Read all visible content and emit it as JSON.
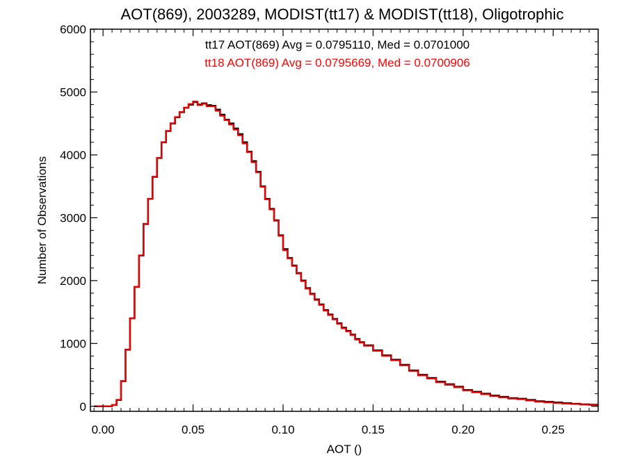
{
  "chart_data": {
    "type": "line",
    "step": true,
    "title": "AOT(869), 2003289, MODIST(tt17) & MODIST(tt18), Oligotrophic",
    "xlabel": "AOT ()",
    "ylabel": "Number of Observations",
    "xlim": [
      -0.007,
      0.275
    ],
    "ylim": [
      -80,
      6000
    ],
    "xticks": [
      0.0,
      0.05,
      0.1,
      0.15,
      0.2,
      0.25
    ],
    "xtick_labels": [
      "0.00",
      "0.05",
      "0.10",
      "0.15",
      "0.20",
      "0.25"
    ],
    "yticks": [
      0,
      1000,
      2000,
      3000,
      4000,
      5000,
      6000
    ],
    "ytick_labels": [
      "0",
      "1000",
      "2000",
      "3000",
      "4000",
      "5000",
      "6000"
    ],
    "grid": false,
    "legend_position": "top-center",
    "x": [
      -0.005,
      0.0,
      0.005,
      0.0075,
      0.01,
      0.0125,
      0.015,
      0.0175,
      0.02,
      0.0225,
      0.025,
      0.0275,
      0.03,
      0.0325,
      0.035,
      0.0375,
      0.04,
      0.0425,
      0.045,
      0.0475,
      0.05,
      0.0525,
      0.055,
      0.0575,
      0.06,
      0.0625,
      0.065,
      0.0675,
      0.07,
      0.0725,
      0.075,
      0.0775,
      0.08,
      0.0825,
      0.085,
      0.0875,
      0.09,
      0.0925,
      0.095,
      0.0975,
      0.1,
      0.1025,
      0.105,
      0.1075,
      0.11,
      0.1125,
      0.115,
      0.1175,
      0.12,
      0.1225,
      0.125,
      0.1275,
      0.13,
      0.1325,
      0.135,
      0.1375,
      0.14,
      0.1425,
      0.145,
      0.15,
      0.155,
      0.16,
      0.165,
      0.17,
      0.175,
      0.18,
      0.185,
      0.19,
      0.195,
      0.2,
      0.205,
      0.21,
      0.215,
      0.22,
      0.225,
      0.23,
      0.235,
      0.24,
      0.245,
      0.25,
      0.255,
      0.26,
      0.265,
      0.27,
      0.274
    ],
    "series": [
      {
        "name": "tt17 AOT(869) Avg = 0.0795110, Med = 0.0701000",
        "color": "#000000",
        "values": [
          0,
          0,
          20,
          100,
          400,
          900,
          1400,
          1900,
          2400,
          2900,
          3300,
          3650,
          3950,
          4200,
          4380,
          4500,
          4600,
          4680,
          4750,
          4800,
          4840,
          4800,
          4820,
          4790,
          4780,
          4720,
          4640,
          4560,
          4500,
          4420,
          4330,
          4200,
          4050,
          3900,
          3730,
          3500,
          3300,
          3140,
          2960,
          2720,
          2500,
          2360,
          2240,
          2120,
          2000,
          1880,
          1790,
          1700,
          1620,
          1530,
          1460,
          1390,
          1320,
          1250,
          1200,
          1140,
          1070,
          1020,
          970,
          890,
          810,
          740,
          660,
          570,
          500,
          450,
          390,
          350,
          310,
          260,
          230,
          200,
          170,
          150,
          130,
          120,
          100,
          80,
          70,
          60,
          50,
          40,
          30,
          25,
          20
        ]
      },
      {
        "name": "tt18 AOT(869) Avg = 0.0795669, Med = 0.0700906",
        "color": "#ff0000",
        "values": [
          0,
          0,
          20,
          100,
          400,
          900,
          1400,
          1900,
          2400,
          2900,
          3300,
          3650,
          3950,
          4200,
          4380,
          4500,
          4600,
          4680,
          4750,
          4810,
          4850,
          4790,
          4810,
          4770,
          4770,
          4700,
          4620,
          4550,
          4480,
          4400,
          4310,
          4180,
          4040,
          3880,
          3720,
          3490,
          3290,
          3130,
          2950,
          2710,
          2480,
          2350,
          2230,
          2110,
          1990,
          1870,
          1780,
          1690,
          1610,
          1520,
          1450,
          1380,
          1310,
          1240,
          1190,
          1130,
          1060,
          1010,
          960,
          880,
          800,
          730,
          650,
          560,
          490,
          440,
          380,
          340,
          300,
          250,
          220,
          190,
          160,
          140,
          120,
          110,
          90,
          70,
          60,
          50,
          40,
          35,
          25,
          20,
          15
        ]
      }
    ]
  }
}
